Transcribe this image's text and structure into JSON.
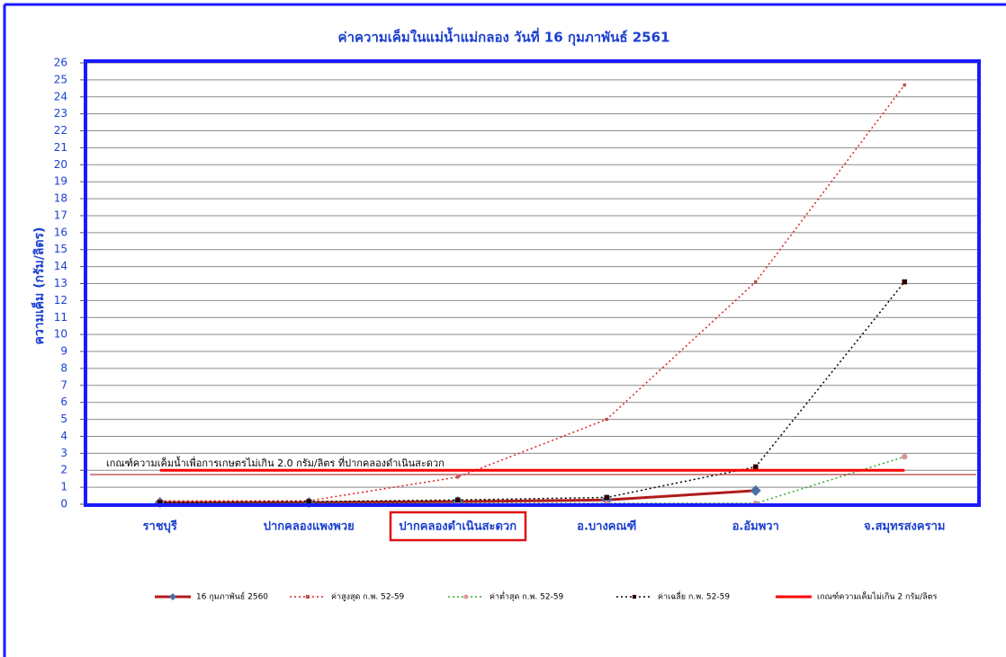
{
  "chart_data": {
    "type": "line",
    "title": "ค่าความเค็มในแม่น้ำแม่กลอง วันที่ 16 กุมภาพันธ์ 2561",
    "y_label": "ความเค็ม (กรัม/ลิตร)",
    "annotation": "เกณฑ์ความเค็มน้ำเพื่อการเกษตรไม่เกิน 2.0 กรัม/ลิตร ที่ปากคลองดำเนินสะดวก",
    "categories": [
      "ราชบุรี",
      "ปากคลองแพงพวย",
      "ปากคลองดำเนินสะดวก",
      "อ.บางคณฑี",
      "อ.อัมพวา",
      "จ.สมุทรสงคราม"
    ],
    "series": [
      {
        "name": "16 กุมภาพันธ์ 2560",
        "color": "#b01c1c",
        "marker": "diamond",
        "marker_color": "#4a6fa5",
        "line_style": "solid",
        "width": 3,
        "values": [
          0.1,
          0.1,
          0.15,
          0.25,
          0.8,
          null
        ]
      },
      {
        "name": "ค่าสูงสุด ก.พ. 52-59",
        "color": "#e02020",
        "marker": "square",
        "marker_color": "#c0504d",
        "line_style": "dotted",
        "width": 1.5,
        "values": [
          0.2,
          0.2,
          1.6,
          5.0,
          13.1,
          24.7
        ]
      },
      {
        "name": "ค่าต่ำสุด ก.พ. 52-59",
        "color": "#2ea82e",
        "marker": "circle",
        "marker_color": "#d99594",
        "line_style": "dotted",
        "width": 1.5,
        "values": [
          0.05,
          0.05,
          0.05,
          0.05,
          0.05,
          2.8
        ]
      },
      {
        "name": "ค่าเฉลี่ย ก.พ. 52-59",
        "color": "#000000",
        "marker": "square",
        "marker_color": "#300000",
        "line_style": "dotted",
        "width": 1.5,
        "values": [
          0.1,
          0.15,
          0.25,
          0.4,
          2.2,
          13.1
        ]
      },
      {
        "name": "เกณฑ์ความเค็มไม่เกิน 2 กรัม/ลิตร",
        "color": "#ff0000",
        "marker": "none",
        "marker_color": "#ff0000",
        "line_style": "solid",
        "width": 3,
        "values": [
          2,
          2,
          2,
          2,
          2,
          2
        ]
      }
    ],
    "ylim": [
      0,
      26
    ],
    "yticks": [
      0,
      1,
      2,
      3,
      4,
      5,
      6,
      7,
      8,
      9,
      10,
      11,
      12,
      13,
      14,
      15,
      16,
      17,
      18,
      19,
      20,
      21,
      22,
      23,
      24,
      25,
      26
    ],
    "grid": true
  }
}
